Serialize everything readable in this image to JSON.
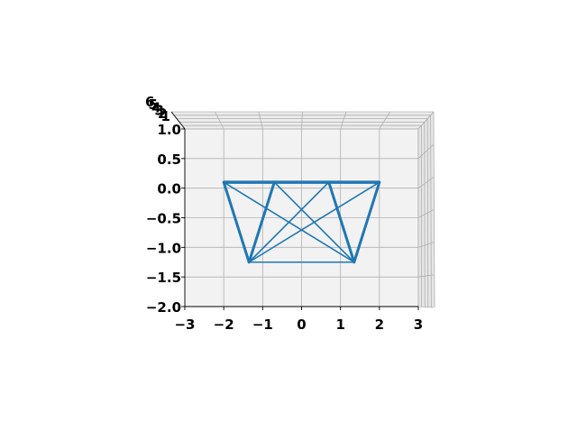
{
  "chart_data": {
    "type": "line",
    "projection": "3d",
    "title": "",
    "xlabel": "",
    "ylabel": "",
    "zlabel": "",
    "x_ticks": [
      "−3",
      "−2",
      "−1",
      "0",
      "1",
      "2",
      "3"
    ],
    "x_tick_values": [
      -3,
      -2,
      -1,
      0,
      1,
      2,
      3
    ],
    "y_ticks": [
      "1.0",
      "0.5",
      "0.0",
      "−0.5",
      "−1.0",
      "−1.5",
      "−2.0"
    ],
    "y_tick_values": [
      1.0,
      0.5,
      0.0,
      -0.5,
      -1.0,
      -1.5,
      -2.0
    ],
    "z_ticks": [
      "6",
      "5",
      "4",
      "3",
      "2",
      "1"
    ],
    "xlim": [
      -3,
      3
    ],
    "ylim": [
      -2,
      1
    ],
    "grid": true,
    "line_color": "#1f77b4",
    "pane_color": "#f2f2f2",
    "grid_color": "#b0b0b0",
    "vertices": {
      "top": [
        [
          -2.0,
          0.1
        ],
        [
          -0.7,
          0.1
        ],
        [
          0.7,
          0.1
        ],
        [
          2.0,
          0.1
        ]
      ],
      "bottom": [
        [
          -1.35,
          -1.25
        ],
        [
          1.35,
          -1.25
        ]
      ]
    },
    "segments": [
      {
        "from": [
          -2.0,
          0.1
        ],
        "to": [
          2.0,
          0.1
        ]
      },
      {
        "from": [
          -2.0,
          0.1
        ],
        "to": [
          -1.35,
          -1.25
        ]
      },
      {
        "from": [
          -2.0,
          0.1
        ],
        "to": [
          1.35,
          -1.25
        ]
      },
      {
        "from": [
          -0.7,
          0.1
        ],
        "to": [
          -1.35,
          -1.25
        ]
      },
      {
        "from": [
          -0.7,
          0.1
        ],
        "to": [
          1.35,
          -1.25
        ]
      },
      {
        "from": [
          0.7,
          0.1
        ],
        "to": [
          -1.35,
          -1.25
        ]
      },
      {
        "from": [
          0.7,
          0.1
        ],
        "to": [
          1.35,
          -1.25
        ]
      },
      {
        "from": [
          2.0,
          0.1
        ],
        "to": [
          1.35,
          -1.25
        ]
      },
      {
        "from": [
          2.0,
          0.1
        ],
        "to": [
          -1.35,
          -1.25
        ]
      },
      {
        "from": [
          -1.35,
          -1.25
        ],
        "to": [
          1.35,
          -1.25
        ]
      },
      {
        "from": [
          -2.0,
          0.1
        ],
        "to": [
          0.7,
          0.1
        ]
      },
      {
        "from": [
          -0.7,
          0.1
        ],
        "to": [
          2.0,
          0.1
        ]
      }
    ]
  }
}
